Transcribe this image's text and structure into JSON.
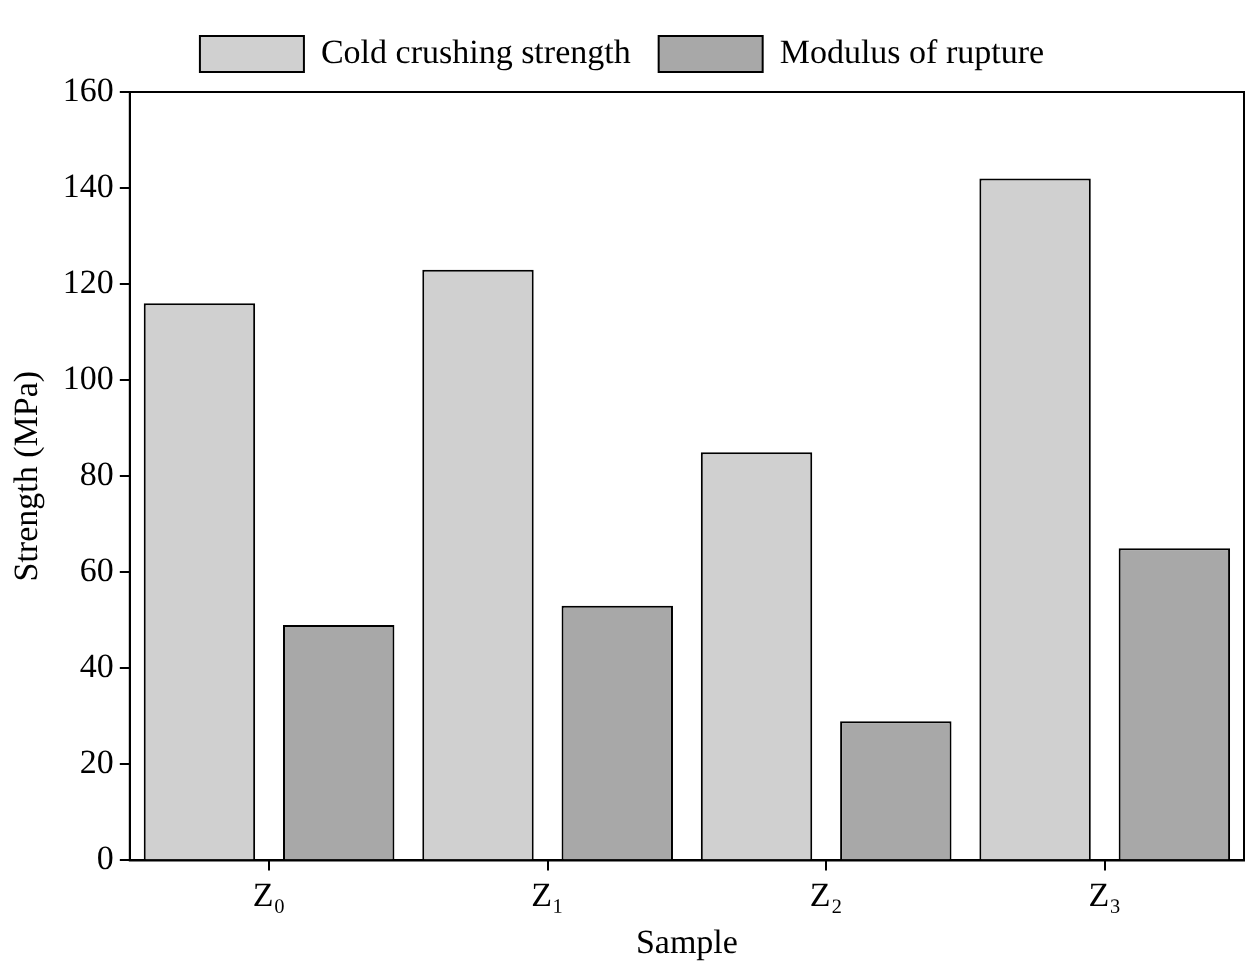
{
  "chart_data": {
    "type": "bar",
    "xlabel": "Sample",
    "ylabel": "Strength (MPa)",
    "categories": [
      "Z₀",
      "Z₁",
      "Z₂",
      "Z₃"
    ],
    "series": [
      {
        "name": "Cold crushing strength",
        "color": "#d0d0d0",
        "values": [
          116,
          123,
          85,
          142
        ]
      },
      {
        "name": "Modulus of rupture",
        "color": "#a8a8a8",
        "values": [
          49,
          53,
          29,
          65
        ]
      }
    ],
    "ylim": [
      0,
      160
    ],
    "yticks": [
      0,
      20,
      40,
      60,
      80,
      100,
      120,
      140,
      160
    ],
    "grid": false,
    "legend": "top"
  }
}
